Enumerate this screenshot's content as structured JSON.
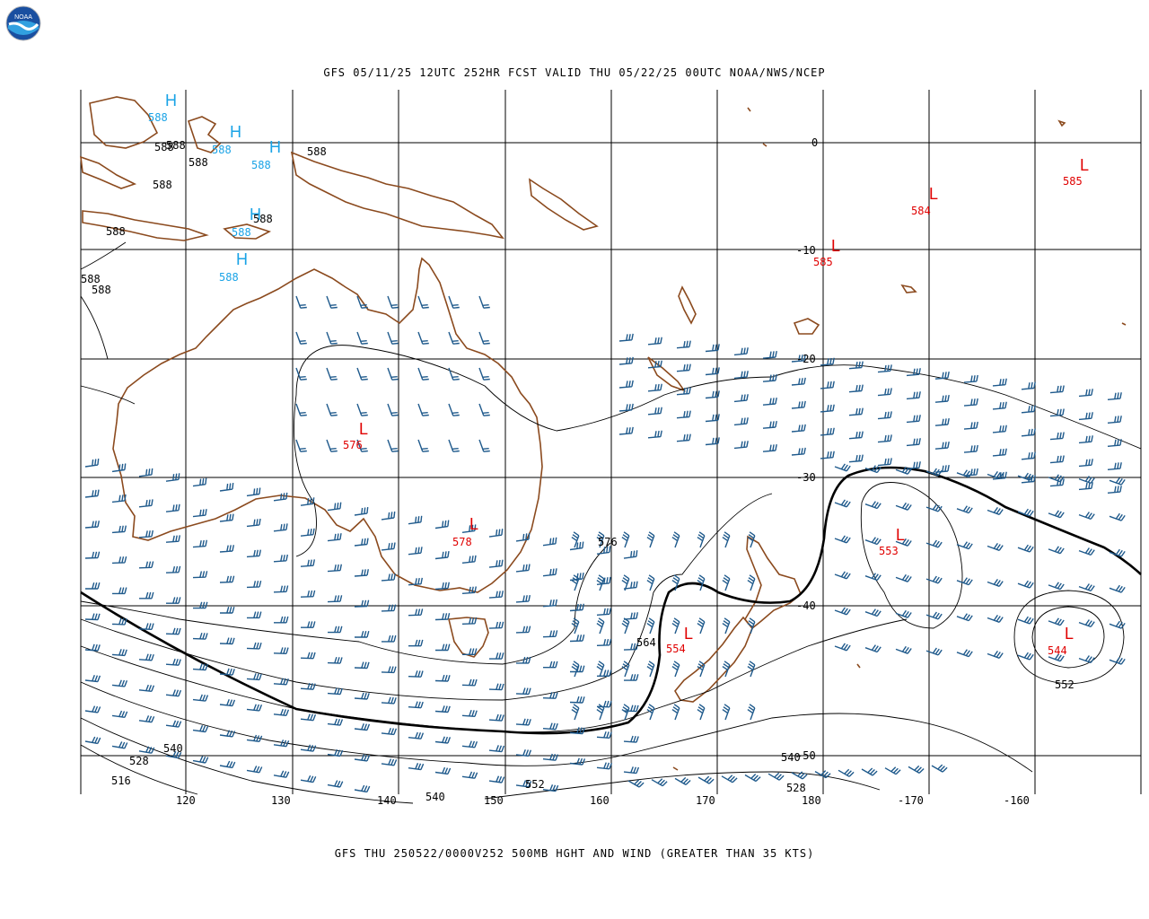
{
  "header": {
    "title": "GFS 05/11/25 12UTC 252HR FCST VALID THU 05/22/25 00UTC NOAA/NWS/NCEP",
    "footer": "GFS THU 250522/0000V252 500MB HGHT AND WIND (GREATER THAN 35 KTS)"
  },
  "logo": {
    "text": "NOAA",
    "icon": "noaa-logo"
  },
  "colors": {
    "coast": "#8b4a1e",
    "grid": "#000000",
    "barb": "#1f5a8c",
    "high": "#1aa3e6",
    "low": "#e00000",
    "contour": "#000000"
  },
  "longitude_labels": [
    "120",
    "130",
    "140",
    "150",
    "160",
    "170",
    "180",
    "-170",
    "-160"
  ],
  "latitude_labels": [
    "0",
    "-10",
    "-20",
    "-30",
    "-40",
    "-50"
  ],
  "highs": [
    {
      "mark": "H",
      "value": "588"
    },
    {
      "mark": "H",
      "value": "588"
    },
    {
      "mark": "H",
      "value": "588"
    },
    {
      "mark": "H",
      "value": "588"
    },
    {
      "mark": "H",
      "value": "588"
    }
  ],
  "lows": [
    {
      "mark": "L",
      "value": "576"
    },
    {
      "mark": "L",
      "value": "578"
    },
    {
      "mark": "L",
      "value": "554"
    },
    {
      "mark": "L",
      "value": "553"
    },
    {
      "mark": "L",
      "value": "544"
    },
    {
      "mark": "L",
      "value": "585"
    },
    {
      "mark": "L",
      "value": "584"
    },
    {
      "mark": "L",
      "value": "585"
    }
  ],
  "contour_labels": [
    "588",
    "588",
    "588",
    "588",
    "588",
    "588",
    "588",
    "588",
    "588",
    "576",
    "564",
    "552",
    "540",
    "540",
    "528",
    "516",
    "552",
    "540",
    "528"
  ]
}
